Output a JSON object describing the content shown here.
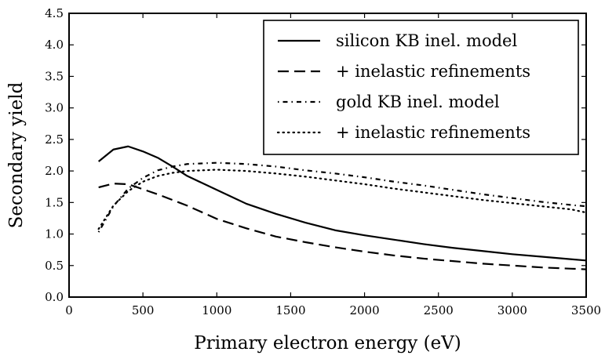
{
  "chart_data": {
    "type": "line",
    "title": "",
    "xlabel": "Primary electron energy (eV)",
    "ylabel": "Secondary yield",
    "xlim": [
      0,
      3500
    ],
    "ylim": [
      0,
      4.5
    ],
    "xticks": [
      0,
      500,
      1000,
      1500,
      2000,
      2500,
      3000,
      3500
    ],
    "yticks": [
      0.0,
      0.5,
      1.0,
      1.5,
      2.0,
      2.5,
      3.0,
      3.5,
      4.0,
      4.5
    ],
    "xtick_labels": [
      "0",
      "500",
      "1000",
      "1500",
      "2000",
      "2500",
      "3000",
      "3500"
    ],
    "ytick_labels": [
      "0.0",
      "0.5",
      "1.0",
      "1.5",
      "2.0",
      "2.5",
      "3.0",
      "3.5",
      "4.0",
      "4.5"
    ],
    "grid": false,
    "legend_position": "top-right",
    "series": [
      {
        "name": "silicon KB inel. model",
        "style": "solid",
        "color": "#000000",
        "x": [
          200,
          300,
          400,
          500,
          600,
          700,
          800,
          900,
          1000,
          1200,
          1400,
          1600,
          1800,
          2000,
          2200,
          2400,
          2600,
          2800,
          3000,
          3200,
          3400,
          3500
        ],
        "y": [
          2.15,
          2.34,
          2.39,
          2.31,
          2.21,
          2.07,
          1.92,
          1.81,
          1.7,
          1.48,
          1.32,
          1.18,
          1.06,
          0.98,
          0.91,
          0.84,
          0.78,
          0.73,
          0.68,
          0.64,
          0.6,
          0.58
        ]
      },
      {
        "name": "+ inelastic refinements",
        "style": "dashed",
        "color": "#000000",
        "x": [
          200,
          300,
          400,
          500,
          600,
          700,
          800,
          1000,
          1200,
          1400,
          1600,
          1800,
          2000,
          2200,
          2400,
          2600,
          2800,
          3000,
          3200,
          3400,
          3500
        ],
        "y": [
          1.74,
          1.8,
          1.79,
          1.71,
          1.63,
          1.54,
          1.45,
          1.24,
          1.09,
          0.96,
          0.87,
          0.79,
          0.72,
          0.66,
          0.61,
          0.57,
          0.53,
          0.5,
          0.47,
          0.45,
          0.44
        ]
      },
      {
        "name": "gold KB inel. model",
        "style": "dashdot",
        "color": "#000000",
        "x": [
          200,
          300,
          400,
          500,
          600,
          700,
          800,
          1000,
          1200,
          1400,
          1600,
          1800,
          2000,
          2200,
          2400,
          2600,
          2800,
          3000,
          3200,
          3400,
          3500
        ],
        "y": [
          1.03,
          1.44,
          1.72,
          1.89,
          2.01,
          2.07,
          2.11,
          2.13,
          2.11,
          2.07,
          2.01,
          1.96,
          1.9,
          1.83,
          1.77,
          1.7,
          1.63,
          1.57,
          1.51,
          1.46,
          1.44
        ]
      },
      {
        "name": "+ inelastic refinements",
        "style": "dotted",
        "color": "#000000",
        "x": [
          200,
          300,
          400,
          500,
          600,
          700,
          800,
          1000,
          1200,
          1400,
          1600,
          1800,
          2000,
          2200,
          2400,
          2600,
          2800,
          3000,
          3200,
          3400,
          3500
        ],
        "y": [
          1.08,
          1.45,
          1.68,
          1.83,
          1.92,
          1.97,
          2.0,
          2.02,
          2.0,
          1.96,
          1.91,
          1.85,
          1.79,
          1.72,
          1.66,
          1.6,
          1.54,
          1.49,
          1.44,
          1.39,
          1.34
        ]
      }
    ]
  }
}
